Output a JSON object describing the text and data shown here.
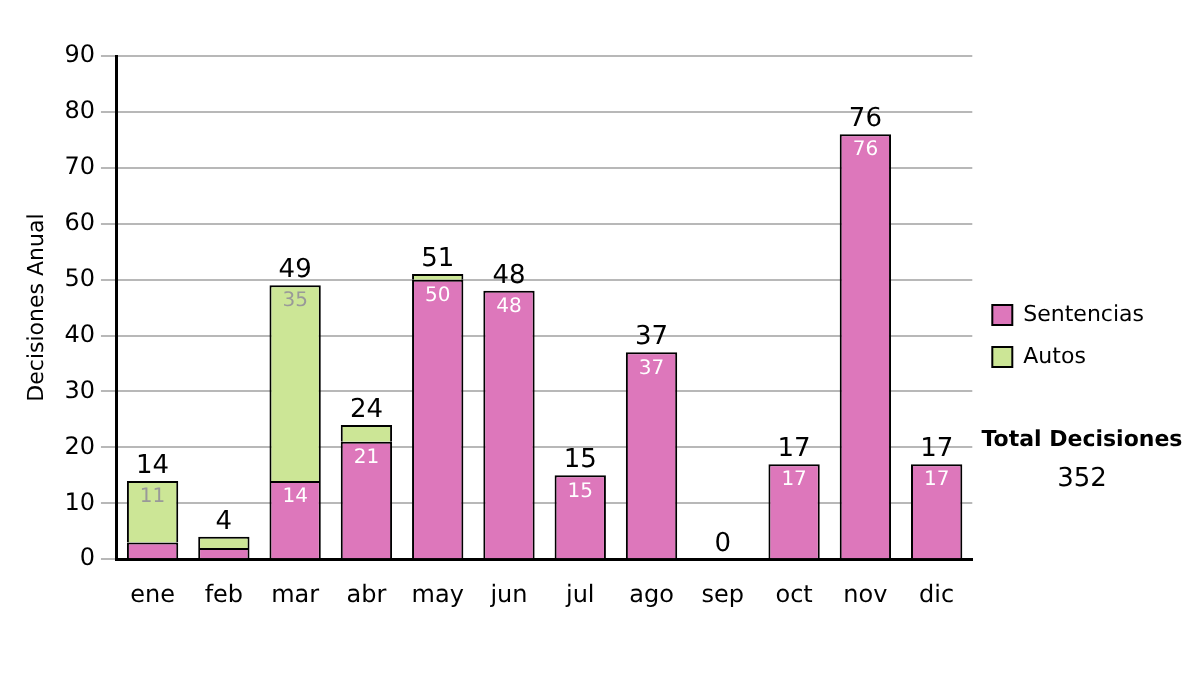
{
  "chart_data": {
    "type": "bar",
    "ylabel": "Decisiones Anual",
    "categories": [
      "ene",
      "feb",
      "mar",
      "abr",
      "may",
      "jun",
      "jul",
      "ago",
      "sep",
      "oct",
      "nov",
      "dic"
    ],
    "series": [
      {
        "name": "Sentencias",
        "color": "#dd77bb",
        "values": [
          3,
          2,
          14,
          21,
          50,
          48,
          15,
          37,
          0,
          17,
          76,
          17
        ],
        "value_labels": [
          null,
          null,
          "14",
          "21",
          "50",
          "48",
          "15",
          "37",
          null,
          "17",
          "76",
          "17"
        ]
      },
      {
        "name": "Autos",
        "color": "#cce696",
        "values": [
          11,
          2,
          35,
          3,
          1,
          0,
          0,
          0,
          0,
          0,
          0,
          0
        ],
        "value_labels": [
          "11",
          null,
          "35",
          null,
          null,
          null,
          null,
          null,
          null,
          null,
          null,
          null
        ]
      }
    ],
    "stacked": true,
    "totals": [
      "14",
      "4",
      "49",
      "24",
      "51",
      "48",
      "15",
      "37",
      "0",
      "17",
      "76",
      "17"
    ],
    "ylim": [
      0,
      90
    ],
    "yticks": [
      0,
      10,
      20,
      30,
      40,
      50,
      60,
      70,
      80,
      90
    ],
    "grid": "y",
    "legend": "right",
    "annotations": [
      "Total Decisiones",
      "352"
    ]
  }
}
